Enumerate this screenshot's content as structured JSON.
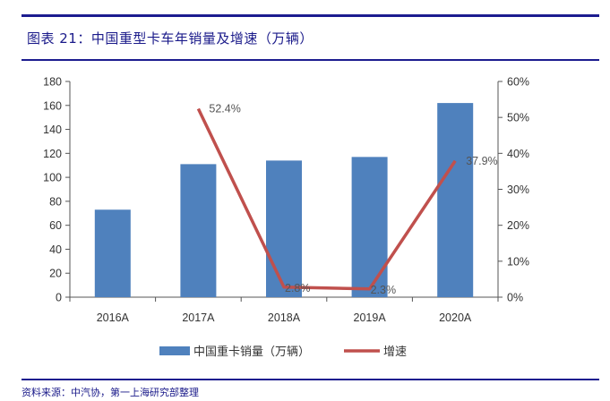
{
  "figure": {
    "title": "图表 21：中国重型卡车年销量及增速（万辆）",
    "source": "资料来源：中汽协，第一上海研究部整理"
  },
  "chart_data": {
    "type": "bar",
    "categories": [
      "2016A",
      "2017A",
      "2018A",
      "2019A",
      "2020A"
    ],
    "series": [
      {
        "name": "中国重卡销量（万辆）",
        "type": "bar",
        "axis": "left",
        "values": [
          73,
          111,
          114,
          117,
          162
        ],
        "color": "#4f81bd"
      },
      {
        "name": "增速",
        "type": "line",
        "axis": "right",
        "values": [
          null,
          52.4,
          2.8,
          2.3,
          37.9
        ],
        "labels": [
          null,
          "52.4%",
          "2.8%",
          "2.3%",
          "37.9%"
        ],
        "color": "#c0504d"
      }
    ],
    "y_left": {
      "ylim": [
        0,
        180
      ],
      "ticks": [
        0,
        20,
        40,
        60,
        80,
        100,
        120,
        140,
        160,
        180
      ]
    },
    "y_right": {
      "ylim": [
        0,
        60
      ],
      "ticks": [
        "0%",
        "10%",
        "20%",
        "30%",
        "40%",
        "50%",
        "60%"
      ]
    },
    "legend": "bottom-center",
    "grid": false
  }
}
